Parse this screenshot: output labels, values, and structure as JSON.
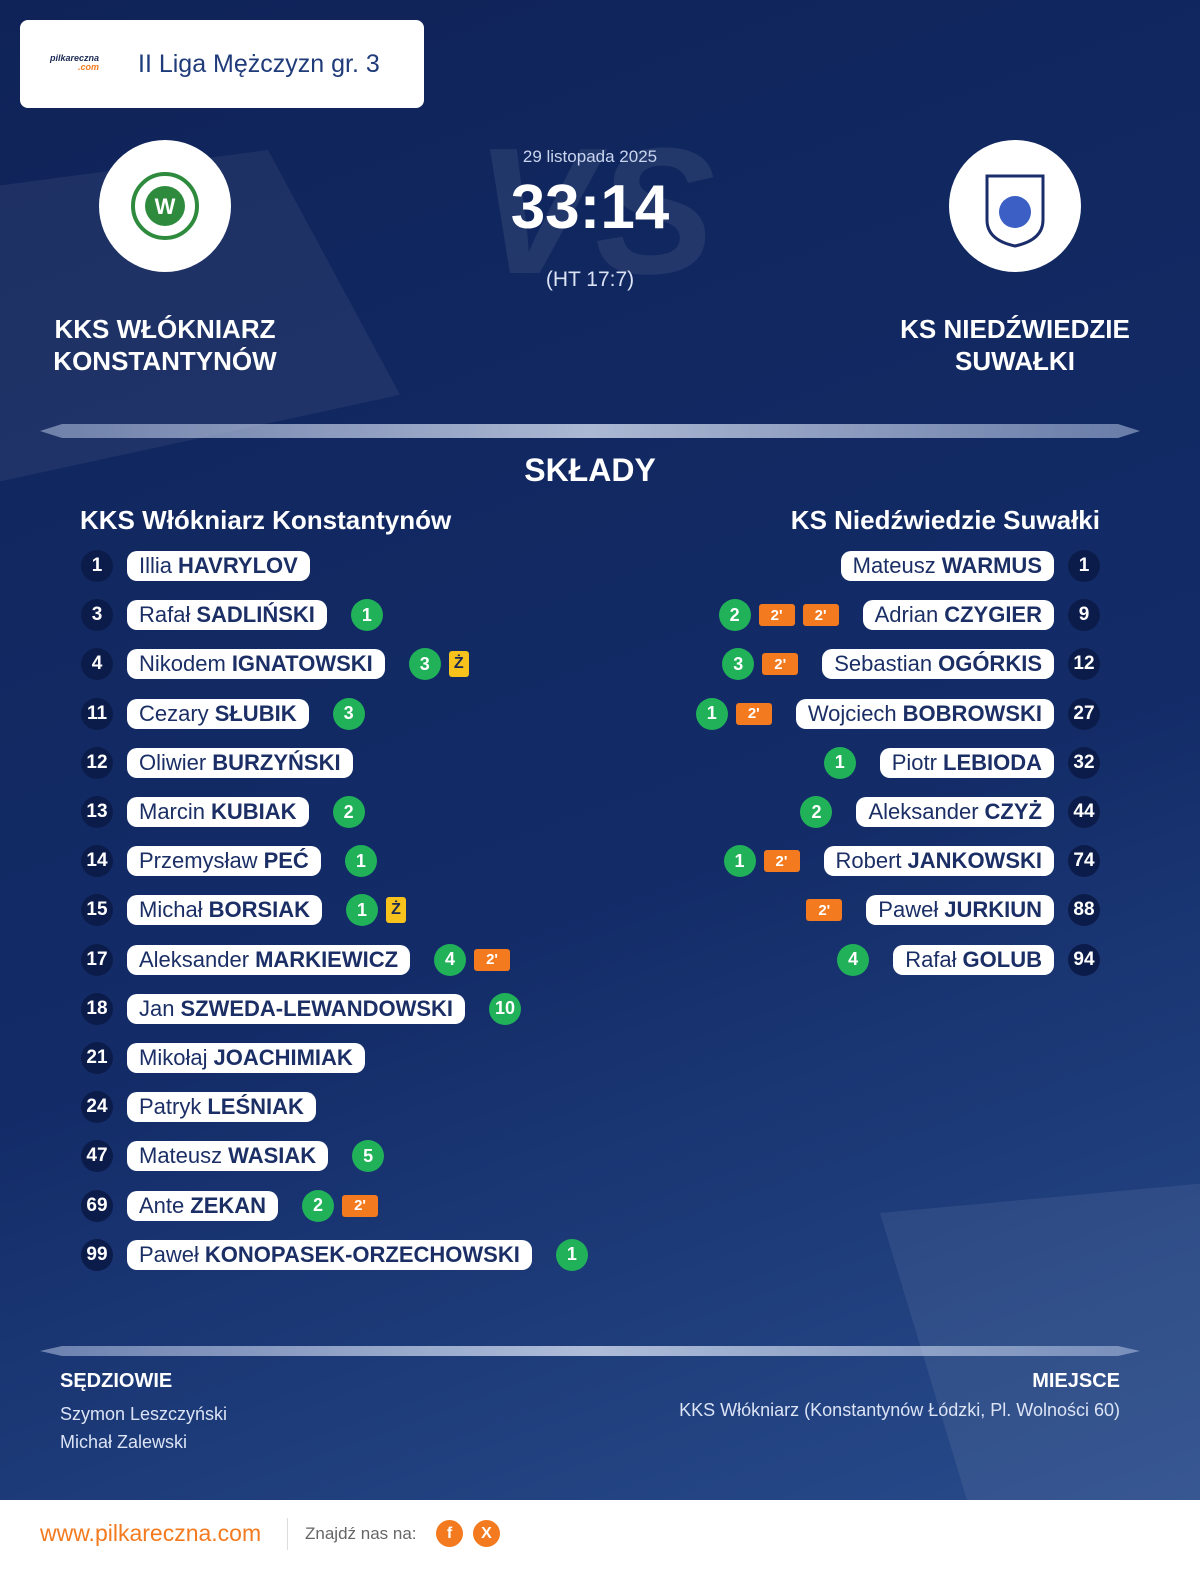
{
  "header": {
    "logo_name": "pilkareczna",
    "logo_suffix": ".com",
    "league": "II Liga Mężczyzn gr. 3"
  },
  "match": {
    "date": "29 listopada 2025",
    "score": "33:14",
    "halftime": "(HT 17:7)",
    "watermark": "VS",
    "home": {
      "name_lines": [
        "KKS WŁÓKNIARZ",
        "KONSTANTYNÓW"
      ]
    },
    "away": {
      "name_lines": [
        "KS NIEDŹWIEDZIE",
        "SUWAŁKI"
      ]
    }
  },
  "lineups": {
    "title": "SKŁADY",
    "home": {
      "team": "KKS Włókniarz Konstantynów",
      "players": [
        {
          "number": 1,
          "first": "Illia",
          "last": "HAVRYLOV"
        },
        {
          "number": 3,
          "first": "Rafał",
          "last": "SADLIŃSKI",
          "goals": 1
        },
        {
          "number": 4,
          "first": "Nikodem",
          "last": "IGNATOWSKI",
          "goals": 3,
          "card": "Ż"
        },
        {
          "number": 11,
          "first": "Cezary",
          "last": "SŁUBIK",
          "goals": 3
        },
        {
          "number": 12,
          "first": "Oliwier",
          "last": "BURZYŃSKI"
        },
        {
          "number": 13,
          "first": "Marcin",
          "last": "KUBIAK",
          "goals": 2
        },
        {
          "number": 14,
          "first": "Przemysław",
          "last": "PEĆ",
          "goals": 1
        },
        {
          "number": 15,
          "first": "Michał",
          "last": "BORSIAK",
          "goals": 1,
          "card": "Ż"
        },
        {
          "number": 17,
          "first": "Aleksander",
          "last": "MARKIEWICZ",
          "goals": 4,
          "suspensions": [
            "2'"
          ]
        },
        {
          "number": 18,
          "first": "Jan",
          "last": "SZWEDA-LEWANDOWSKI",
          "goals": 10
        },
        {
          "number": 21,
          "first": "Mikołaj",
          "last": "JOACHIMIAK"
        },
        {
          "number": 24,
          "first": "Patryk",
          "last": "LEŚNIAK"
        },
        {
          "number": 47,
          "first": "Mateusz",
          "last": "WASIAK",
          "goals": 5
        },
        {
          "number": 69,
          "first": "Ante",
          "last": "ZEKAN",
          "goals": 2,
          "suspensions": [
            "2'"
          ]
        },
        {
          "number": 99,
          "first": "Paweł",
          "last": "KONOPASEK-ORZECHOWSKI",
          "goals": 1
        }
      ]
    },
    "away": {
      "team": "KS Niedźwiedzie Suwałki",
      "players": [
        {
          "number": 1,
          "first": "Mateusz",
          "last": "WARMUS"
        },
        {
          "number": 9,
          "first": "Adrian",
          "last": "CZYGIER",
          "goals": 2,
          "suspensions": [
            "2'",
            "2'"
          ]
        },
        {
          "number": 12,
          "first": "Sebastian",
          "last": "OGÓRKIS",
          "goals": 3,
          "suspensions": [
            "2'"
          ]
        },
        {
          "number": 27,
          "first": "Wojciech",
          "last": "BOBROWSKI",
          "goals": 1,
          "suspensions": [
            "2'"
          ]
        },
        {
          "number": 32,
          "first": "Piotr",
          "last": "LEBIODA",
          "goals": 1
        },
        {
          "number": 44,
          "first": "Aleksander",
          "last": "CZYŻ",
          "goals": 2
        },
        {
          "number": 74,
          "first": "Robert",
          "last": "JANKOWSKI",
          "goals": 1,
          "suspensions": [
            "2'"
          ]
        },
        {
          "number": 88,
          "first": "Paweł",
          "last": "JURKIUN",
          "suspensions": [
            "2'"
          ]
        },
        {
          "number": 94,
          "first": "Rafał",
          "last": "GOLUB",
          "goals": 4
        }
      ]
    }
  },
  "footer": {
    "referees_title": "SĘDZIOWIE",
    "referees": [
      "Szymon Leszczyński",
      "Michał Zalewski"
    ],
    "venue_title": "MIEJSCE",
    "venue": "KKS Włókniarz (Konstantynów Łódzki, Pl. Wolności 60)"
  },
  "bottom": {
    "website": "www.pilkareczna.com",
    "find_us": "Znajdź nas na:",
    "social": [
      "f",
      "X"
    ]
  }
}
